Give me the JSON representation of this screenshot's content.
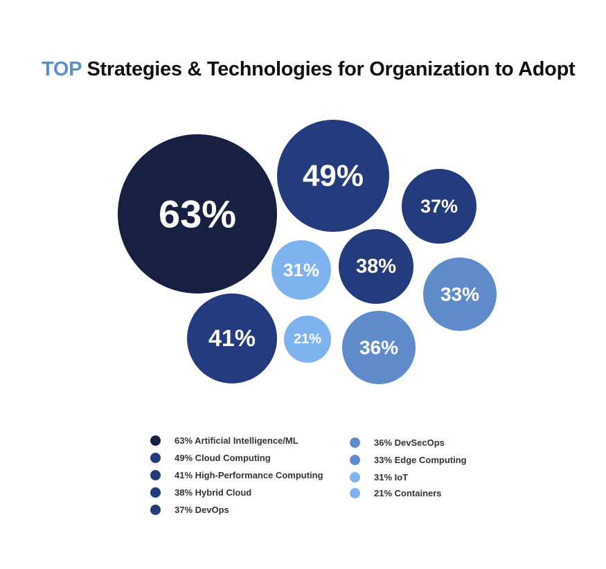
{
  "title": {
    "accent": "TOP",
    "text": "Strategies & Technologies for Organization to Adopt"
  },
  "colors": {
    "darkest": "#172040",
    "dark_blue": "#243c7e",
    "medium_blue": "#5f8bcb",
    "light_blue": "#7eb3f0"
  },
  "chart_data": {
    "type": "bubble",
    "title": "TOP Strategies & Technologies for Organization to Adopt",
    "unit": "%",
    "items": [
      {
        "label": "Artificial Intelligence/ML",
        "value": 63,
        "display": "63%",
        "legend": "63% Artificial Intelligence/ML",
        "color": "#172040"
      },
      {
        "label": "Cloud Computing",
        "value": 49,
        "display": "49%",
        "legend": "49% Cloud Computing",
        "color": "#243c7e"
      },
      {
        "label": "High-Performance Computing",
        "value": 41,
        "display": "41%",
        "legend": "41% High-Performance Computing",
        "color": "#243c7e"
      },
      {
        "label": "Hybrid Cloud",
        "value": 38,
        "display": "38%",
        "legend": "38% Hybrid Cloud",
        "color": "#243c7e"
      },
      {
        "label": "DevOps",
        "value": 37,
        "display": "37%",
        "legend": "37% DevOps",
        "color": "#243c7e"
      },
      {
        "label": "DevSecOps",
        "value": 36,
        "display": "36%",
        "legend": "36% DevSecOps",
        "color": "#5f8bcb"
      },
      {
        "label": "Edge Computing",
        "value": 33,
        "display": "33%",
        "legend": "33% Edge Computing",
        "color": "#5f8bcb"
      },
      {
        "label": "IoT",
        "value": 31,
        "display": "31%",
        "legend": "31% IoT",
        "color": "#7eb3f0"
      },
      {
        "label": "Containers",
        "value": 21,
        "display": "21%",
        "legend": "21% Containers",
        "color": "#7eb3f0"
      }
    ]
  }
}
